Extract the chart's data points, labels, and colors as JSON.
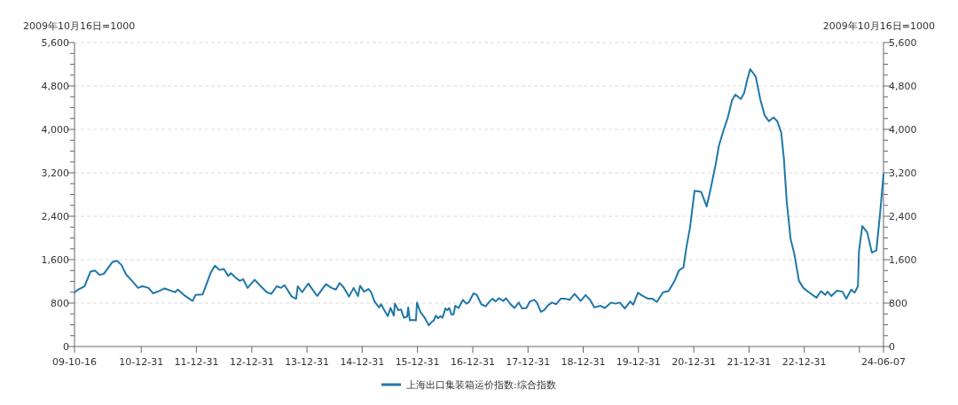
{
  "chart_data": {
    "type": "line",
    "ylabel": "2009年10月16日=1000",
    "y2label": "2009年10月16日=1000",
    "xlim": [
      "2009-10-16",
      "2024-06-07"
    ],
    "xticks": [
      {
        "value": "2009-10-16",
        "label": "09-10-16"
      },
      {
        "value": "2010-12-31",
        "label": "10-12-31"
      },
      {
        "value": "2011-12-31",
        "label": "11-12-31"
      },
      {
        "value": "2012-12-31",
        "label": "12-12-31"
      },
      {
        "value": "2013-12-31",
        "label": "13-12-31"
      },
      {
        "value": "2014-12-31",
        "label": "14-12-31"
      },
      {
        "value": "2015-12-31",
        "label": "15-12-31"
      },
      {
        "value": "2016-12-31",
        "label": "16-12-31"
      },
      {
        "value": "2017-12-31",
        "label": "17-12-31"
      },
      {
        "value": "2018-12-31",
        "label": "18-12-31"
      },
      {
        "value": "2019-12-31",
        "label": "19-12-31"
      },
      {
        "value": "2020-12-31",
        "label": "20-12-31"
      },
      {
        "value": "2021-12-31",
        "label": "21-12-31"
      },
      {
        "value": "2022-12-31",
        "label": "22-12-31"
      },
      {
        "value": "2023-12-31",
        "label": null
      },
      {
        "value": "2024-06-07",
        "label": "24-06-07"
      }
    ],
    "ylim": [
      0,
      5600
    ],
    "yticks": [
      0,
      {
        "value": 200,
        "label": null
      },
      {
        "value": 400,
        "label": null
      },
      {
        "value": 600,
        "label": null
      },
      800,
      {
        "value": 1000,
        "label": null
      },
      {
        "value": 1200,
        "label": null
      },
      {
        "value": 1400,
        "label": null
      },
      {
        "value": 1600,
        "label": "1,600"
      },
      {
        "value": 1800,
        "label": null
      },
      {
        "value": 2000,
        "label": null
      },
      {
        "value": 2200,
        "label": null
      },
      {
        "value": 2400,
        "label": "2,400"
      },
      {
        "value": 2600,
        "label": null
      },
      {
        "value": 2800,
        "label": null
      },
      {
        "value": 3000,
        "label": null
      },
      {
        "value": 3200,
        "label": "3,200"
      },
      {
        "value": 3400,
        "label": null
      },
      {
        "value": 3600,
        "label": null
      },
      {
        "value": 3800,
        "label": null
      },
      {
        "value": 4000,
        "label": "4,000"
      },
      {
        "value": 4200,
        "label": null
      },
      {
        "value": 4400,
        "label": null
      },
      {
        "value": 4600,
        "label": null
      },
      {
        "value": 4800,
        "label": "4,800"
      },
      {
        "value": 5000,
        "label": null
      },
      {
        "value": 5200,
        "label": null
      },
      {
        "value": 5400,
        "label": null
      },
      {
        "value": 5600,
        "label": "5,600"
      }
    ],
    "y2lim": [
      0,
      5600
    ],
    "y2ticks": [
      0,
      {
        "value": 200,
        "label": null
      },
      {
        "value": 400,
        "label": null
      },
      {
        "value": 600,
        "label": null
      },
      800,
      {
        "value": 1000,
        "label": null
      },
      {
        "value": 1200,
        "label": null
      },
      {
        "value": 1400,
        "label": null
      },
      {
        "value": 1600,
        "label": "1,600"
      },
      {
        "value": 1800,
        "label": null
      },
      {
        "value": 2000,
        "label": null
      },
      {
        "value": 2200,
        "label": null
      },
      {
        "value": 2400,
        "label": "2,400"
      },
      {
        "value": 2600,
        "label": null
      },
      {
        "value": 2800,
        "label": null
      },
      {
        "value": 3000,
        "label": null
      },
      {
        "value": 3200,
        "label": "3,200"
      },
      {
        "value": 3400,
        "label": null
      },
      {
        "value": 3600,
        "label": null
      },
      {
        "value": 3800,
        "label": null
      },
      {
        "value": 4000,
        "label": "4,000"
      },
      {
        "value": 4200,
        "label": null
      },
      {
        "value": 4400,
        "label": null
      },
      {
        "value": 4600,
        "label": null
      },
      {
        "value": 4800,
        "label": "4,800"
      },
      {
        "value": 5000,
        "label": null
      },
      {
        "value": 5200,
        "label": null
      },
      {
        "value": 5400,
        "label": null
      },
      {
        "value": 5600,
        "label": "5,600"
      }
    ],
    "grid": "y",
    "legend": "bottom",
    "marker": "none",
    "line_style": "solid",
    "series": [
      {
        "name": "上海出口集装箱运价指数:综合指数",
        "color": "#1f78a8",
        "x": [
          "2009-10-16",
          "2009-11-11",
          "2009-12-21",
          "2010-01-30",
          "2010-02-28",
          "2010-03-30",
          "2010-04-28",
          "2010-06-25",
          "2010-07-24",
          "2010-08-23",
          "2010-09-21",
          "2010-10-31",
          "2010-12-10",
          "2011-01-08",
          "2011-02-17",
          "2011-03-19",
          "2011-05-05",
          "2011-06-03",
          "2011-07-13",
          "2011-08-12",
          "2011-08-30",
          "2011-10-09",
          "2011-12-06",
          "2011-12-25",
          "2012-02-10",
          "2012-03-04",
          "2012-04-02",
          "2012-05-01",
          "2012-05-31",
          "2012-06-29",
          "2012-07-28",
          "2012-08-15",
          "2012-09-14",
          "2012-10-13",
          "2012-11-04",
          "2012-12-03",
          "2013-01-19",
          "2013-02-28",
          "2013-04-10",
          "2013-05-09",
          "2013-06-14",
          "2013-07-13",
          "2013-08-04",
          "2013-09-21",
          "2013-10-20",
          "2013-10-31",
          "2013-11-29",
          "2014-01-08",
          "2014-03-08",
          "2014-04-06",
          "2014-05-05",
          "2014-06-11",
          "2014-07-10",
          "2014-08-04",
          "2014-08-30",
          "2014-10-05",
          "2014-11-04",
          "2014-12-03",
          "2014-12-17",
          "2015-01-12",
          "2015-02-10",
          "2015-02-28",
          "2015-03-22",
          "2015-04-21",
          "2015-05-05",
          "2015-05-20",
          "2015-06-18",
          "2015-07-06",
          "2015-07-28",
          "2015-08-04",
          "2015-08-26",
          "2015-09-14",
          "2015-10-02",
          "2015-10-24",
          "2015-10-31",
          "2015-11-11",
          "2015-11-29",
          "2015-12-21",
          "2015-12-28",
          "2016-01-19",
          "2016-02-17",
          "2016-03-15",
          "2016-04-02",
          "2016-04-17",
          "2016-05-01",
          "2016-05-16",
          "2016-05-31",
          "2016-06-14",
          "2016-07-03",
          "2016-07-17",
          "2016-07-28",
          "2016-08-12",
          "2016-08-26",
          "2016-09-06",
          "2016-09-28",
          "2016-10-27",
          "2016-11-18",
          "2016-12-06",
          "2017-01-05",
          "2017-01-27",
          "2017-02-25",
          "2017-03-26",
          "2017-04-24",
          "2017-05-12",
          "2017-05-31",
          "2017-06-22",
          "2017-07-21",
          "2017-08-08",
          "2017-09-06",
          "2017-10-02",
          "2017-10-31",
          "2017-11-22",
          "2017-12-21",
          "2018-01-12",
          "2018-02-10",
          "2018-02-28",
          "2018-03-26",
          "2018-04-17",
          "2018-05-09",
          "2018-06-07",
          "2018-07-06",
          "2018-08-04",
          "2018-09-03",
          "2018-10-02",
          "2018-11-04",
          "2018-12-14",
          "2019-01-16",
          "2019-02-14",
          "2019-03-15",
          "2019-04-24",
          "2019-05-23",
          "2019-07-03",
          "2019-08-01",
          "2019-08-30",
          "2019-10-02",
          "2019-11-07",
          "2019-11-26",
          "2019-12-28",
          "2020-01-23",
          "2020-03-04",
          "2020-04-02",
          "2020-05-01",
          "2020-06-11",
          "2020-07-17",
          "2020-08-26",
          "2020-09-24",
          "2020-10-24",
          "2020-11-11",
          "2020-12-06",
          "2021-01-05",
          "2021-02-17",
          "2021-03-26",
          "2021-04-17",
          "2021-05-05",
          "2021-05-27",
          "2021-06-14",
          "2021-07-13",
          "2021-08-12",
          "2021-09-10",
          "2021-10-02",
          "2021-11-07",
          "2021-11-29",
          "2021-12-17",
          "2022-01-08",
          "2022-02-14",
          "2022-03-15",
          "2022-04-13",
          "2022-05-12",
          "2022-06-11",
          "2022-07-06",
          "2022-08-01",
          "2022-08-19",
          "2022-09-06",
          "2022-10-02",
          "2022-10-27",
          "2022-11-26",
          "2022-12-25",
          "2023-01-30",
          "2023-03-22",
          "2023-04-21",
          "2023-05-20",
          "2023-06-03",
          "2023-06-29",
          "2023-08-04",
          "2023-09-10",
          "2023-10-05",
          "2023-11-07",
          "2023-11-29",
          "2023-12-21",
          "2023-12-28",
          "2024-01-19",
          "2024-02-21",
          "2024-03-22",
          "2024-04-21",
          "2024-05-16",
          "2024-06-07"
        ],
        "values": [
          1000,
          1050,
          1110,
          1380,
          1400,
          1320,
          1340,
          1560,
          1580,
          1500,
          1330,
          1210,
          1080,
          1110,
          1080,
          980,
          1030,
          1070,
          1030,
          1000,
          1050,
          950,
          840,
          950,
          960,
          1130,
          1350,
          1490,
          1410,
          1430,
          1300,
          1350,
          1270,
          1210,
          1240,
          1080,
          1230,
          1110,
          1000,
          970,
          1110,
          1080,
          1130,
          920,
          880,
          1110,
          1000,
          1160,
          930,
          1040,
          1150,
          1080,
          1050,
          1170,
          1090,
          920,
          1080,
          930,
          1120,
          1010,
          1060,
          1000,
          830,
          720,
          780,
          700,
          560,
          710,
          570,
          790,
          670,
          680,
          530,
          550,
          720,
          480,
          490,
          480,
          810,
          640,
          530,
          390,
          450,
          480,
          570,
          520,
          560,
          530,
          700,
          670,
          710,
          590,
          590,
          750,
          710,
          860,
          790,
          820,
          980,
          950,
          780,
          740,
          840,
          880,
          830,
          890,
          840,
          890,
          780,
          710,
          810,
          700,
          710,
          830,
          860,
          810,
          640,
          670,
          750,
          810,
          780,
          880,
          880,
          860,
          970,
          840,
          950,
          860,
          720,
          750,
          710,
          810,
          790,
          810,
          700,
          830,
          770,
          990,
          940,
          880,
          880,
          820,
          1000,
          1020,
          1210,
          1400,
          1460,
          1810,
          2190,
          2870,
          2850,
          2580,
          2850,
          3090,
          3390,
          3690,
          3960,
          4210,
          4540,
          4640,
          4560,
          4670,
          4890,
          5110,
          4970,
          4560,
          4260,
          4150,
          4220,
          4150,
          3940,
          3450,
          2680,
          1980,
          1700,
          1210,
          1080,
          1000,
          900,
          1020,
          950,
          1010,
          930,
          1030,
          1010,
          880,
          1050,
          990,
          1110,
          1760,
          2220,
          2100,
          1730,
          1770,
          2470,
          3170
        ]
      }
    ]
  }
}
